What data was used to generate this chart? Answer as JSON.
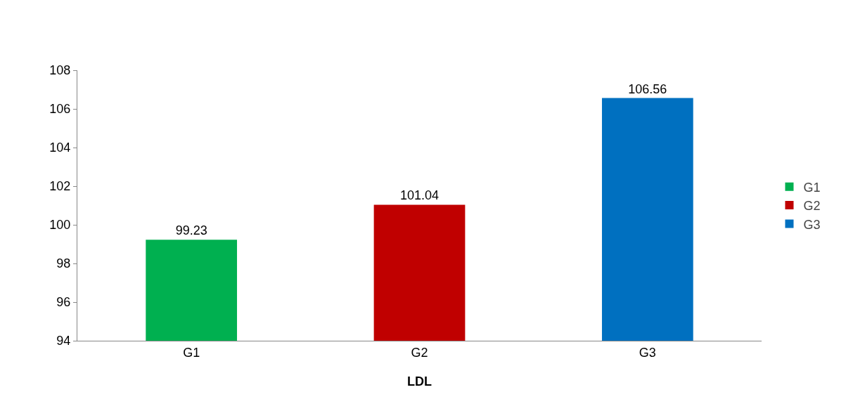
{
  "chart_data": {
    "type": "bar",
    "xlabel": "LDL",
    "categories": [
      "G1",
      "G2",
      "G3"
    ],
    "series": [
      {
        "name": "G1",
        "color": "#00b050",
        "values": [
          99.23,
          null,
          null
        ]
      },
      {
        "name": "G2",
        "color": "#c00000",
        "values": [
          null,
          101.04,
          null
        ]
      },
      {
        "name": "G3",
        "color": "#0070c0",
        "values": [
          null,
          null,
          106.56
        ]
      }
    ],
    "ylim": [
      94,
      108
    ],
    "yticks": [
      94,
      96,
      98,
      100,
      102,
      104,
      106,
      108
    ],
    "grid": false,
    "legend": "right",
    "data_labels": true
  }
}
